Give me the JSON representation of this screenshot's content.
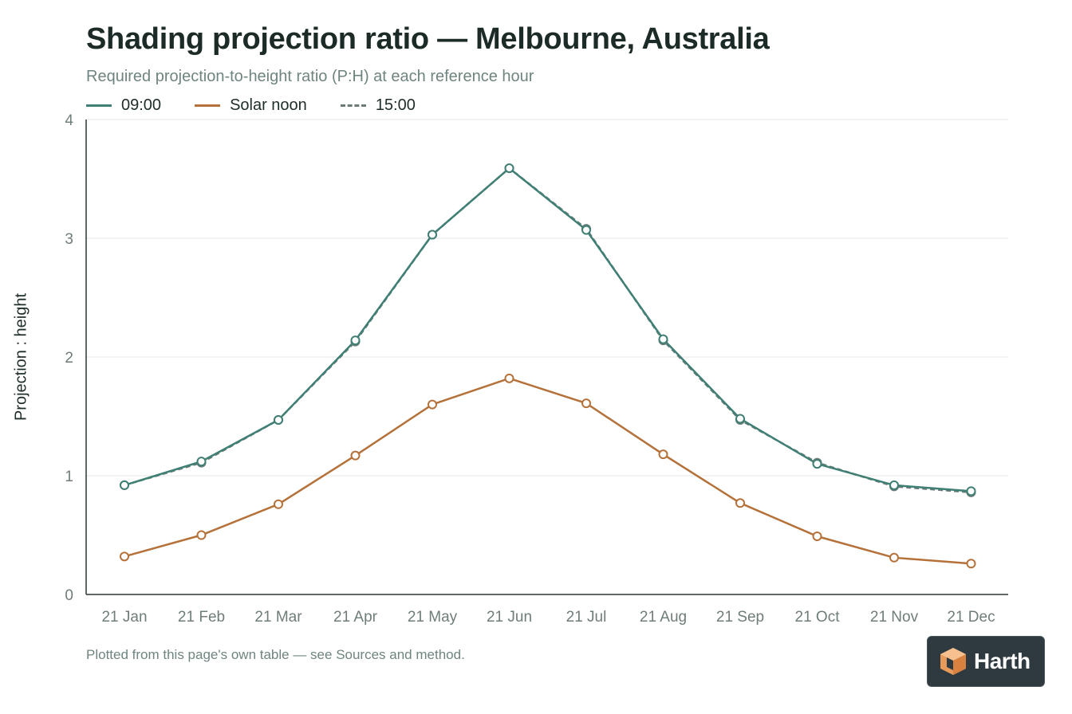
{
  "title": "Shading projection ratio — Melbourne, Australia",
  "subtitle": "Required projection-to-height ratio (P:H) at each reference hour",
  "footnote": "Plotted from this page's own table — see Sources and method.",
  "logo": {
    "text": "Harth",
    "icon": "cube-logo-icon"
  },
  "colors": {
    "morning": "#3f7f74",
    "noon": "#b5713a",
    "afternoon": "#6b7b78",
    "grid": "#e6eae9",
    "axis": "#2b3532"
  },
  "chart_data": {
    "type": "line",
    "ylabel": "Projection : height",
    "xlabel": "",
    "ylim": [
      0,
      4
    ],
    "yticks": [
      "0",
      "1",
      "2",
      "3",
      "4"
    ],
    "grid": true,
    "legend_position": "top-left",
    "categories": [
      "21 Jan",
      "21 Feb",
      "21 Mar",
      "21 Apr",
      "21 May",
      "21 Jun",
      "21 Jul",
      "21 Aug",
      "21 Sep",
      "21 Oct",
      "21 Nov",
      "21 Dec"
    ],
    "series": [
      {
        "name": "09:00",
        "style": "solid",
        "color": "#3f7f74",
        "values": [
          0.92,
          1.12,
          1.47,
          2.14,
          3.03,
          3.59,
          3.07,
          2.15,
          1.48,
          1.1,
          0.92,
          0.87
        ]
      },
      {
        "name": "Solar noon",
        "style": "solid",
        "color": "#b5713a",
        "values": [
          0.32,
          0.5,
          0.76,
          1.17,
          1.6,
          1.82,
          1.61,
          1.18,
          0.77,
          0.49,
          0.31,
          0.26
        ]
      },
      {
        "name": "15:00",
        "style": "dashed",
        "color": "#6b7b78",
        "values": [
          0.92,
          1.11,
          1.47,
          2.13,
          3.03,
          3.59,
          3.08,
          2.14,
          1.47,
          1.11,
          0.91,
          0.86
        ]
      }
    ]
  }
}
